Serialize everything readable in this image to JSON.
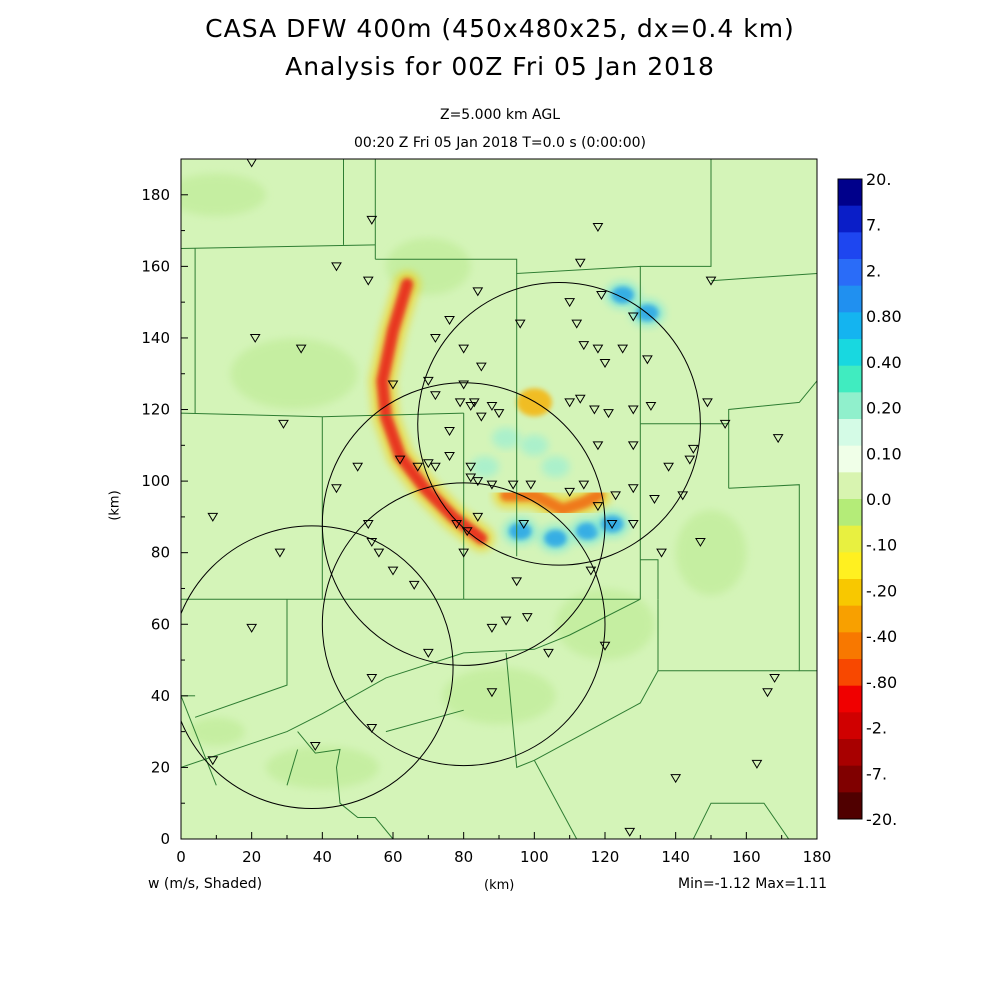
{
  "title_line1": "CASA DFW 400m (450x480x25, dx=0.4 km)",
  "title_line2": "Analysis for 00Z Fri 05 Jan 2018",
  "subtitle_line1": "Z=5.000 km AGL",
  "subtitle_line2": "00:20 Z Fri 05 Jan 2018    T=0.0 s (0:00:00)",
  "variable_label": "w (m/s, Shaded)",
  "stats_label": "Min=-1.12 Max=1.11",
  "colors": {
    "background_field": "#d4f4b8",
    "weak_down": "#c0ec98",
    "strong_down": "#e8281e",
    "up": "#26a4e8",
    "county_lines": "#2e7d32"
  },
  "chart_data": {
    "type": "heatmap",
    "xlabel": "(km)",
    "ylabel": "(km)",
    "xlim": [
      0,
      180
    ],
    "ylim": [
      0,
      190
    ],
    "x_ticks": [
      0,
      20,
      40,
      60,
      80,
      100,
      120,
      140,
      160,
      180
    ],
    "y_ticks": [
      0,
      20,
      40,
      60,
      80,
      100,
      120,
      140,
      160,
      180
    ],
    "colorbar": {
      "labels": [
        "20.",
        "7.",
        "2.",
        "0.80",
        "0.40",
        "0.20",
        "0.10",
        "0.0",
        "-.10",
        "-.20",
        "-.40",
        "-.80",
        "-2.",
        "-7.",
        "-20."
      ],
      "colors": [
        "#00008b",
        "#0a1ec8",
        "#1e46f0",
        "#2a6cf8",
        "#2090f0",
        "#14b4f0",
        "#18d8e0",
        "#40ecc0",
        "#90f0cc",
        "#d4fbe6",
        "#f0ffe8",
        "#d8f4b0",
        "#b4ec78",
        "#e8f040",
        "#fff020",
        "#f8c800",
        "#f8a000",
        "#f87800",
        "#f84800",
        "#f00000",
        "#d00000",
        "#a80000",
        "#800000",
        "#500000"
      ]
    },
    "radar_circles_km": [
      {
        "cx": 107,
        "cy": 116,
        "r": 40
      },
      {
        "cx": 80,
        "cy": 88,
        "r": 40
      },
      {
        "cx": 37,
        "cy": 48,
        "r": 40
      },
      {
        "cx": 80,
        "cy": 60,
        "r": 40
      }
    ],
    "downdraft_band_km": [
      [
        64,
        155
      ],
      [
        60,
        142
      ],
      [
        57,
        128
      ],
      [
        58,
        118
      ],
      [
        62,
        107
      ],
      [
        69,
        98
      ],
      [
        77,
        90
      ],
      [
        85,
        84
      ]
    ],
    "downdraft_band2_km": [
      [
        92,
        96
      ],
      [
        100,
        96
      ],
      [
        108,
        92
      ],
      [
        114,
        94
      ],
      [
        118,
        96
      ]
    ],
    "updraft_patches_km": [
      [
        132,
        147
      ],
      [
        125,
        152
      ],
      [
        96,
        86
      ],
      [
        106,
        84
      ],
      [
        115,
        86
      ],
      [
        122,
        88
      ]
    ],
    "stations_km": [
      [
        20,
        189
      ],
      [
        54,
        173
      ],
      [
        44,
        160
      ],
      [
        118,
        171
      ],
      [
        113,
        161
      ],
      [
        150,
        156
      ],
      [
        21,
        140
      ],
      [
        34,
        137
      ],
      [
        60,
        127
      ],
      [
        53,
        156
      ],
      [
        72,
        140
      ],
      [
        76,
        145
      ],
      [
        84,
        153
      ],
      [
        96,
        144
      ],
      [
        110,
        150
      ],
      [
        112,
        144
      ],
      [
        119,
        152
      ],
      [
        128,
        146
      ],
      [
        125,
        137
      ],
      [
        132,
        134
      ],
      [
        114,
        138
      ],
      [
        118,
        137
      ],
      [
        120,
        133
      ],
      [
        80,
        137
      ],
      [
        85,
        132
      ],
      [
        88,
        121
      ],
      [
        79,
        122
      ],
      [
        82,
        121
      ],
      [
        85,
        118
      ],
      [
        76,
        114
      ],
      [
        72,
        124
      ],
      [
        70,
        128
      ],
      [
        80,
        127
      ],
      [
        83,
        122
      ],
      [
        90,
        119
      ],
      [
        113,
        123
      ],
      [
        110,
        122
      ],
      [
        117,
        120
      ],
      [
        121,
        119
      ],
      [
        128,
        120
      ],
      [
        133,
        121
      ],
      [
        149,
        122
      ],
      [
        154,
        116
      ],
      [
        169,
        112
      ],
      [
        145,
        109
      ],
      [
        118,
        110
      ],
      [
        128,
        110
      ],
      [
        138,
        104
      ],
      [
        144,
        106
      ],
      [
        142,
        96
      ],
      [
        128,
        98
      ],
      [
        123,
        96
      ],
      [
        134,
        95
      ],
      [
        114,
        99
      ],
      [
        110,
        97
      ],
      [
        118,
        93
      ],
      [
        122,
        88
      ],
      [
        136,
        80
      ],
      [
        147,
        83
      ],
      [
        128,
        88
      ],
      [
        84,
        100
      ],
      [
        82,
        101
      ],
      [
        88,
        99
      ],
      [
        94,
        99
      ],
      [
        76,
        107
      ],
      [
        82,
        104
      ],
      [
        70,
        105
      ],
      [
        67,
        104
      ],
      [
        72,
        104
      ],
      [
        62,
        106
      ],
      [
        50,
        104
      ],
      [
        44,
        98
      ],
      [
        29,
        116
      ],
      [
        9,
        90
      ],
      [
        28,
        80
      ],
      [
        53,
        88
      ],
      [
        54,
        83
      ],
      [
        56,
        80
      ],
      [
        66,
        71
      ],
      [
        60,
        75
      ],
      [
        78,
        88
      ],
      [
        81,
        86
      ],
      [
        84,
        90
      ],
      [
        80,
        80
      ],
      [
        97,
        88
      ],
      [
        99,
        99
      ],
      [
        95,
        72
      ],
      [
        88,
        59
      ],
      [
        92,
        61
      ],
      [
        98,
        62
      ],
      [
        116,
        75
      ],
      [
        120,
        54
      ],
      [
        104,
        52
      ],
      [
        70,
        52
      ],
      [
        20,
        59
      ],
      [
        54,
        45
      ],
      [
        54,
        31
      ],
      [
        38,
        26
      ],
      [
        9,
        22
      ],
      [
        88,
        41
      ],
      [
        140,
        17
      ],
      [
        163,
        21
      ],
      [
        166,
        41
      ],
      [
        168,
        45
      ],
      [
        127,
        2
      ]
    ]
  }
}
